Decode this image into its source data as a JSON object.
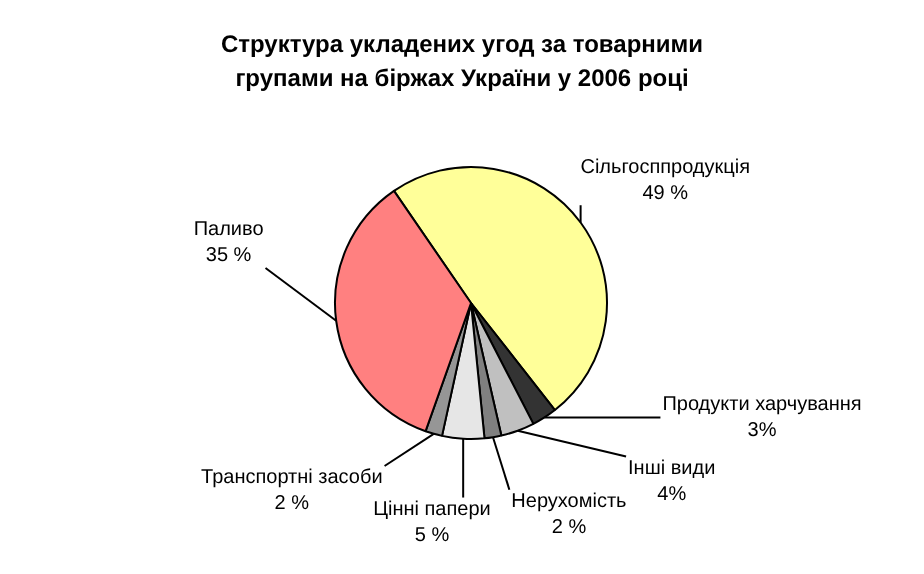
{
  "chart_data": {
    "type": "pie",
    "title": "Структура укладених угод за товарними групами на біржах України у 2006 році",
    "categories": [
      "Сільгосппродукція",
      "Продукти харчування",
      "Інші види",
      "Нерухомість",
      "Цінні папери",
      "Транспортні засоби",
      "Паливо"
    ],
    "values": [
      49,
      3,
      4,
      2,
      5,
      2,
      35
    ],
    "value_labels": [
      "49 %",
      "3%",
      "4%",
      "2 %",
      "5 %",
      "2 %",
      "35 %"
    ],
    "colors": [
      "#ffff99",
      "#333333",
      "#c0c0c0",
      "#808080",
      "#e6e6e6",
      "#969696",
      "#ff8080"
    ],
    "legend": false
  }
}
